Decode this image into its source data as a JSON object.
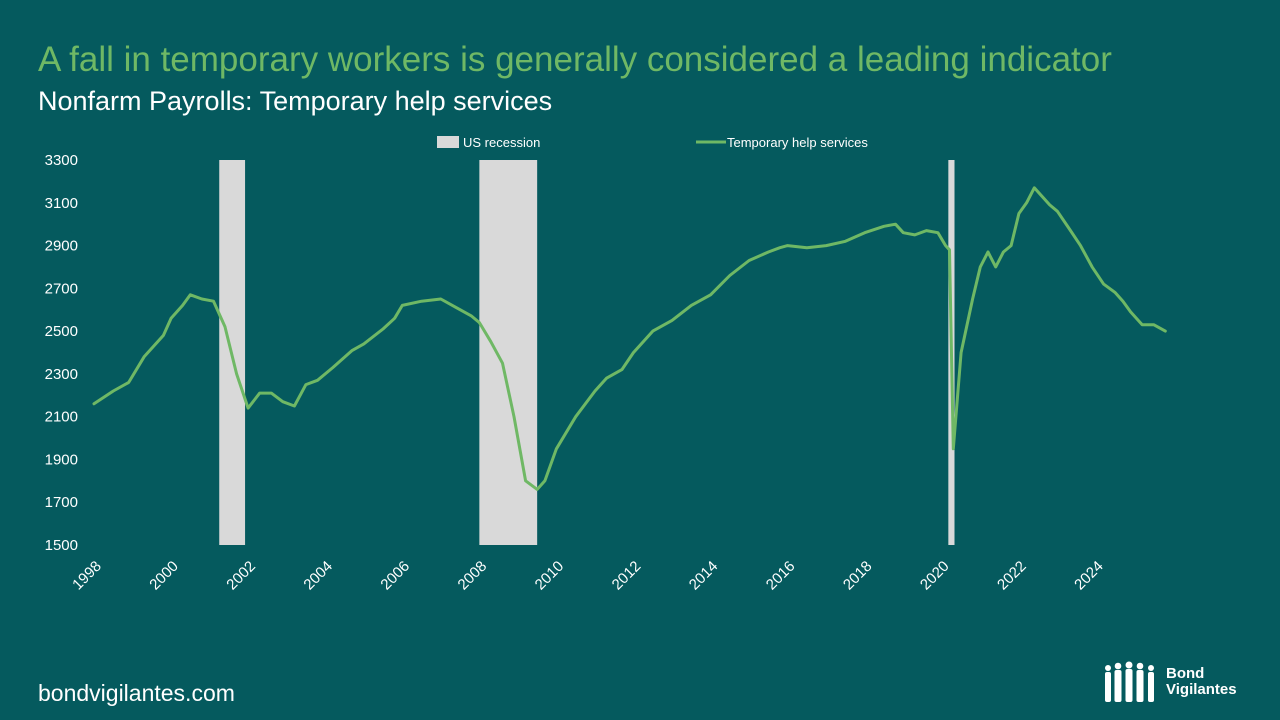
{
  "slide": {
    "title": "A fall in temporary workers is generally considered a leading indicator",
    "subtitle": "Nonfarm Payrolls: Temporary help services",
    "footer": "bondvigilantes.com",
    "logo_line1": "Bond",
    "logo_line2": "Vigilantes",
    "logo_icon": "people-group-icon"
  },
  "colors": {
    "background": "#055a5e",
    "line": "#6fb865",
    "recession": "#d9d9d9",
    "text": "#ffffff",
    "title": "#6fb865"
  },
  "chart_data": {
    "type": "line",
    "title": "Nonfarm Payrolls: Temporary help services",
    "xlabel": "",
    "ylabel": "",
    "xlim": [
      1998,
      2026
    ],
    "ylim": [
      1500,
      3300
    ],
    "yticks": [
      1500,
      1700,
      1900,
      2100,
      2300,
      2500,
      2700,
      2900,
      3100,
      3300
    ],
    "xticks": [
      1998,
      2000,
      2002,
      2004,
      2006,
      2008,
      2010,
      2012,
      2014,
      2016,
      2018,
      2020,
      2022,
      2024
    ],
    "grid": false,
    "legend": {
      "placement": "top",
      "entries": [
        {
          "label": "US recession",
          "kind": "bar"
        },
        {
          "label": "Temporary help services",
          "kind": "line"
        }
      ]
    },
    "recessions": [
      {
        "start": 2001.25,
        "end": 2001.92
      },
      {
        "start": 2008.0,
        "end": 2009.5
      },
      {
        "start": 2020.17,
        "end": 2020.33
      }
    ],
    "series": [
      {
        "name": "Temporary help services",
        "x": [
          1998.0,
          1998.5,
          1998.9,
          1999.3,
          1999.8,
          2000.0,
          2000.3,
          2000.5,
          2000.8,
          2001.1,
          2001.4,
          2001.7,
          2002.0,
          2002.3,
          2002.6,
          2002.9,
          2003.2,
          2003.5,
          2003.8,
          2004.2,
          2004.7,
          2005.0,
          2005.5,
          2005.8,
          2006.0,
          2006.5,
          2007.0,
          2007.4,
          2007.8,
          2008.0,
          2008.3,
          2008.6,
          2008.9,
          2009.2,
          2009.5,
          2009.7,
          2010.0,
          2010.5,
          2011.0,
          2011.3,
          2011.7,
          2012.0,
          2012.5,
          2013.0,
          2013.5,
          2014.0,
          2014.5,
          2015.0,
          2015.5,
          2015.8,
          2016.0,
          2016.5,
          2017.0,
          2017.5,
          2018.0,
          2018.5,
          2018.8,
          2019.0,
          2019.3,
          2019.6,
          2019.9,
          2020.1,
          2020.2,
          2020.3,
          2020.5,
          2020.8,
          2021.0,
          2021.2,
          2021.4,
          2021.6,
          2021.8,
          2022.0,
          2022.2,
          2022.4,
          2022.8,
          2023.0,
          2023.3,
          2023.6,
          2023.9,
          2024.2,
          2024.5,
          2024.7,
          2024.9,
          2025.2,
          2025.5,
          2025.8
        ],
        "values": [
          2160,
          2220,
          2260,
          2380,
          2480,
          2560,
          2620,
          2670,
          2650,
          2640,
          2520,
          2300,
          2140,
          2210,
          2210,
          2170,
          2150,
          2250,
          2270,
          2330,
          2410,
          2440,
          2510,
          2560,
          2620,
          2640,
          2650,
          2610,
          2570,
          2540,
          2450,
          2350,
          2100,
          1800,
          1760,
          1800,
          1950,
          2100,
          2220,
          2280,
          2320,
          2400,
          2500,
          2550,
          2620,
          2670,
          2760,
          2830,
          2870,
          2890,
          2900,
          2890,
          2900,
          2920,
          2960,
          2990,
          3000,
          2960,
          2950,
          2970,
          2960,
          2900,
          2880,
          1950,
          2400,
          2650,
          2800,
          2870,
          2800,
          2870,
          2900,
          3050,
          3100,
          3170,
          3090,
          3060,
          2980,
          2900,
          2800,
          2720,
          2680,
          2640,
          2590,
          2530,
          2530,
          2500
        ]
      }
    ]
  }
}
